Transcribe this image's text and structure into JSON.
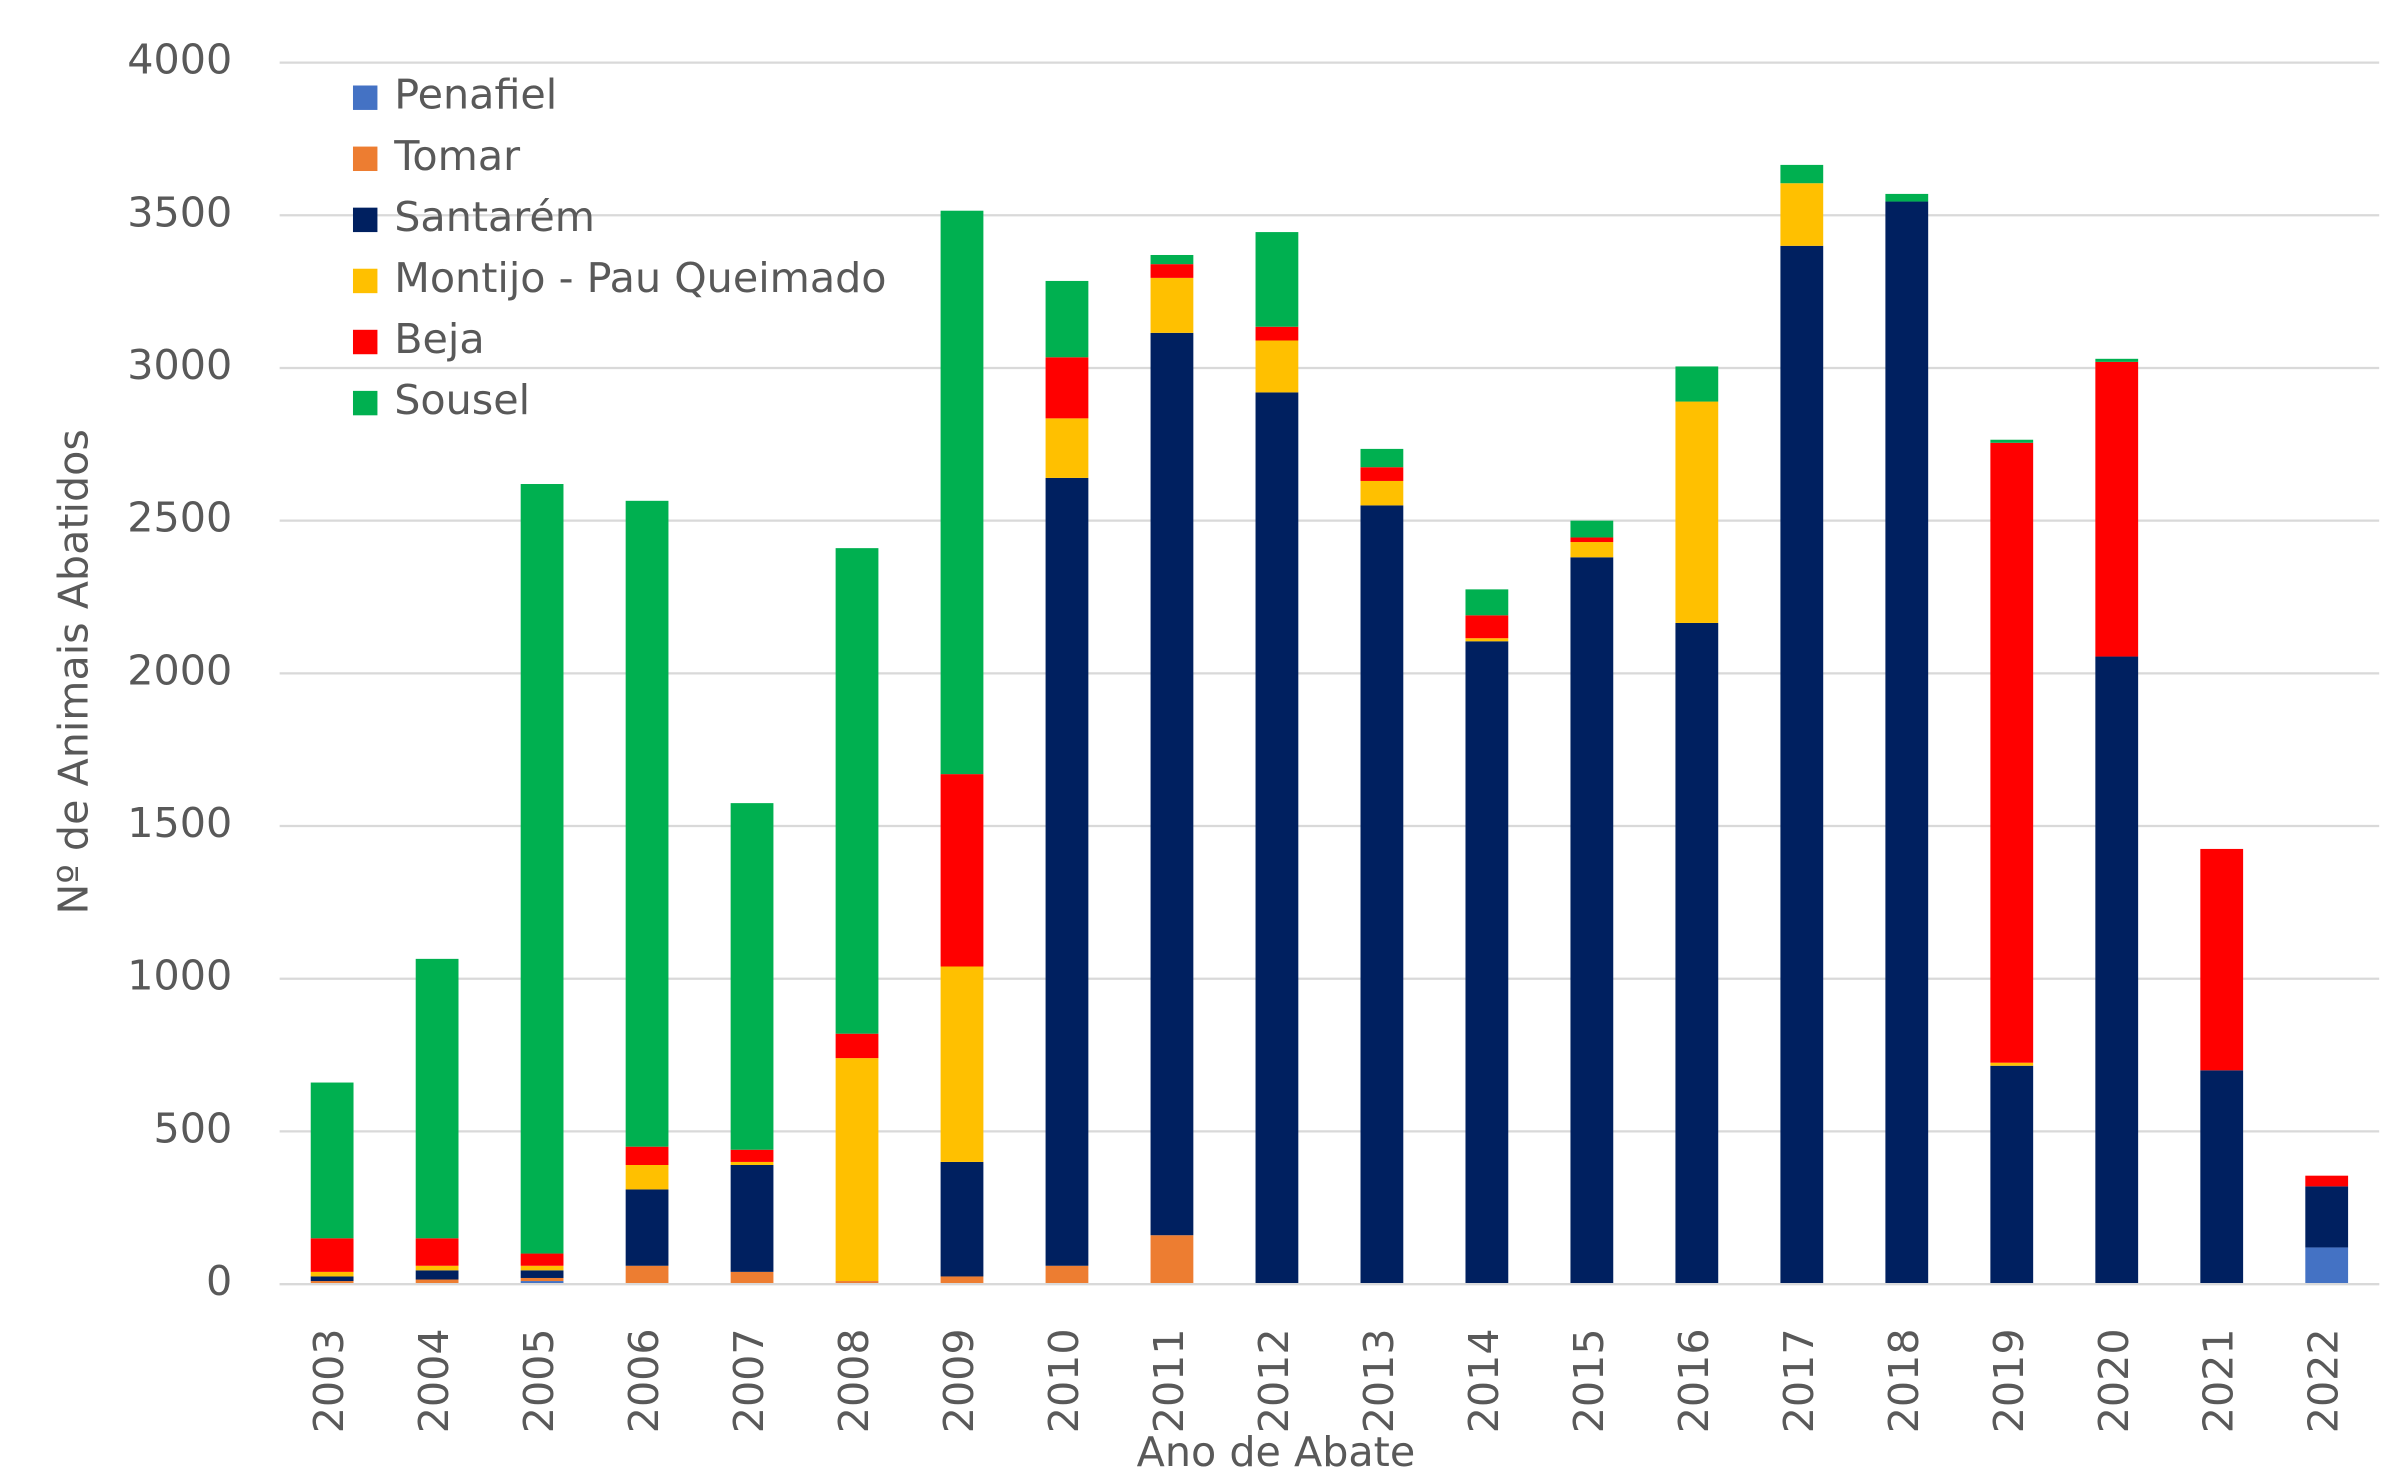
{
  "chart_data": {
    "type": "stacked_bar",
    "y_label": "Nº de Animais Abatidos",
    "x_label": "Ano de Abate",
    "categories": [
      "2003",
      "2004",
      "2005",
      "2006",
      "2007",
      "2008",
      "2009",
      "2010",
      "2011",
      "2012",
      "2013",
      "2014",
      "2015",
      "2016",
      "2017",
      "2018",
      "2019",
      "2020",
      "2021",
      "2022"
    ],
    "series": [
      {
        "name": "Penafiel",
        "color": "#4472c4",
        "values": [
          0,
          0,
          10,
          0,
          0,
          0,
          0,
          0,
          0,
          0,
          0,
          0,
          0,
          0,
          0,
          0,
          0,
          0,
          0,
          120
        ]
      },
      {
        "name": "Tomar",
        "color": "#ed7d31",
        "values": [
          10,
          15,
          10,
          60,
          40,
          10,
          25,
          60,
          160,
          0,
          0,
          0,
          0,
          0,
          0,
          0,
          0,
          0,
          0,
          0
        ]
      },
      {
        "name": "Santarém",
        "color": "#002060",
        "values": [
          15,
          30,
          25,
          250,
          350,
          0,
          375,
          2580,
          2955,
          2920,
          2550,
          2105,
          2380,
          2165,
          3400,
          3545,
          715,
          2055,
          700,
          200
        ]
      },
      {
        "name": "Montijo - Pau Queimado",
        "color": "#ffc000",
        "values": [
          15,
          15,
          15,
          80,
          10,
          730,
          640,
          195,
          180,
          170,
          80,
          10,
          50,
          725,
          205,
          0,
          10,
          0,
          0,
          0
        ]
      },
      {
        "name": "Beja",
        "color": "#ff0000",
        "values": [
          110,
          90,
          40,
          60,
          40,
          80,
          630,
          200,
          45,
          45,
          45,
          75,
          15,
          0,
          0,
          0,
          2030,
          965,
          725,
          35
        ]
      },
      {
        "name": "Sousel",
        "color": "#00b050",
        "values": [
          510,
          915,
          2520,
          2115,
          1135,
          1590,
          1845,
          250,
          30,
          310,
          60,
          85,
          55,
          115,
          60,
          25,
          10,
          10,
          0,
          0
        ]
      }
    ],
    "ylim": [
      0,
      4000
    ],
    "yticks": [
      0,
      500,
      1000,
      1500,
      2000,
      2500,
      3000,
      3500,
      4000
    ],
    "grid": true,
    "legend": "upper left"
  }
}
